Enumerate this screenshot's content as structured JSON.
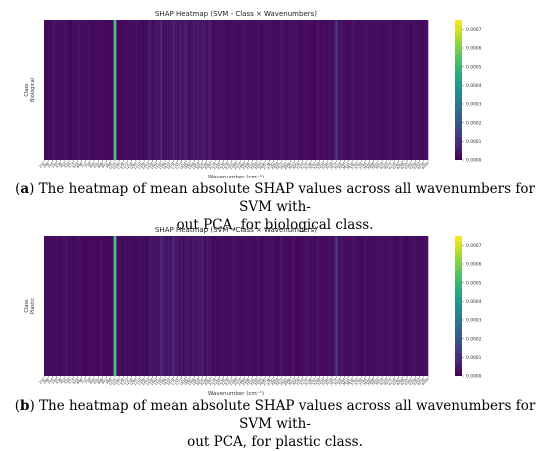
{
  "chart_data": [
    {
      "type": "heatmap",
      "title": "SHAP Heatmap (SVM - Class × Wavenumbers)",
      "xlabel": "Wavenumber (cm⁻¹)",
      "ylabel": "Class",
      "rows": [
        "Biological"
      ],
      "x_ticks": [
        "252",
        "298",
        "344",
        "390",
        "436",
        "482",
        "528",
        "574",
        "620",
        "666",
        "712",
        "758",
        "804",
        "850",
        "896",
        "942",
        "988",
        "1034",
        "1080",
        "1126",
        "1172",
        "1218",
        "1264",
        "1310",
        "1356",
        "1402",
        "1448",
        "1494",
        "1540",
        "1586",
        "1632",
        "1678",
        "1724",
        "1770",
        "1816",
        "1862",
        "1908",
        "1954",
        "2000",
        "2046",
        "2092",
        "2138",
        "2184",
        "2230",
        "2276",
        "2322",
        "2368",
        "2414",
        "2460",
        "2506",
        "2552",
        "2598",
        "2644",
        "2690",
        "2736",
        "2782",
        "2828",
        "2874",
        "2920",
        "2966",
        "3012",
        "3058",
        "3104",
        "3150",
        "3196",
        "3242",
        "3288",
        "3334",
        "3380",
        "3426",
        "3472",
        "3518",
        "3564",
        "3610",
        "3656",
        "3702",
        "3748",
        "3794",
        "3840",
        "3886",
        "3932",
        "3978",
        "4024",
        "4070",
        "4116",
        "4162",
        "4208",
        "4254",
        "4300",
        "4346",
        "4392",
        "4438",
        "4484"
      ],
      "colorbar": {
        "colormap": "viridis",
        "min": 0.0,
        "max": 0.00075,
        "ticks": [
          "0.0000",
          "0.0001",
          "0.0002",
          "0.0003",
          "0.0004",
          "0.0005",
          "0.0006",
          "0.0007"
        ]
      },
      "highlights": [
        {
          "wavenumber": 1034,
          "value": 0.00055
        },
        {
          "wavenumber": 3472,
          "value": 0.00018
        },
        {
          "wavenumber": 1540,
          "value": 8e-05
        },
        {
          "wavenumber": 1678,
          "value": 7e-05
        },
        {
          "wavenumber": 2000,
          "value": 6e-05
        }
      ],
      "baseline_value": 2e-05
    },
    {
      "type": "heatmap",
      "title": "SHAP Heatmap (SVM - Class × Wavenumbers)",
      "xlabel": "Wavenumber (cm⁻¹)",
      "ylabel": "Class",
      "rows": [
        "Plastic"
      ],
      "x_ticks": [
        "252",
        "298",
        "344",
        "390",
        "436",
        "482",
        "528",
        "574",
        "620",
        "666",
        "712",
        "758",
        "804",
        "850",
        "896",
        "942",
        "988",
        "1034",
        "1080",
        "1126",
        "1172",
        "1218",
        "1264",
        "1310",
        "1356",
        "1402",
        "1448",
        "1494",
        "1540",
        "1586",
        "1632",
        "1678",
        "1724",
        "1770",
        "1816",
        "1862",
        "1908",
        "1954",
        "2000",
        "2046",
        "2092",
        "2138",
        "2184",
        "2230",
        "2276",
        "2322",
        "2368",
        "2414",
        "2460",
        "2506",
        "2552",
        "2598",
        "2644",
        "2690",
        "2736",
        "2782",
        "2828",
        "2874",
        "2920",
        "2966",
        "3012",
        "3058",
        "3104",
        "3150",
        "3196",
        "3242",
        "3288",
        "3334",
        "3380",
        "3426",
        "3472",
        "3518",
        "3564",
        "3610",
        "3656",
        "3702",
        "3748",
        "3794",
        "3840",
        "3886",
        "3932",
        "3978",
        "4024",
        "4070",
        "4116",
        "4162",
        "4208",
        "4254",
        "4300",
        "4346",
        "4392",
        "4438",
        "4484"
      ],
      "colorbar": {
        "colormap": "viridis",
        "min": 0.0,
        "max": 0.00075,
        "ticks": [
          "0.0000",
          "0.0001",
          "0.0002",
          "0.0003",
          "0.0004",
          "0.0005",
          "0.0006",
          "0.0007"
        ]
      },
      "highlights": [
        {
          "wavenumber": 1034,
          "value": 0.00055
        },
        {
          "wavenumber": 3472,
          "value": 0.00018
        },
        {
          "wavenumber": 1540,
          "value": 8e-05
        },
        {
          "wavenumber": 1678,
          "value": 7e-05
        },
        {
          "wavenumber": 2000,
          "value": 6e-05
        }
      ],
      "baseline_value": 2e-05
    }
  ],
  "captions": [
    {
      "label": "a",
      "line1": ") The heatmap of mean absolute SHAP values across all wavenumbers for SVM with-",
      "line2": "out PCA, for biological class."
    },
    {
      "label": "b",
      "line1": ") The heatmap of mean absolute SHAP values across all wavenumbers for SVM with-",
      "line2": "out PCA, for plastic class."
    }
  ]
}
